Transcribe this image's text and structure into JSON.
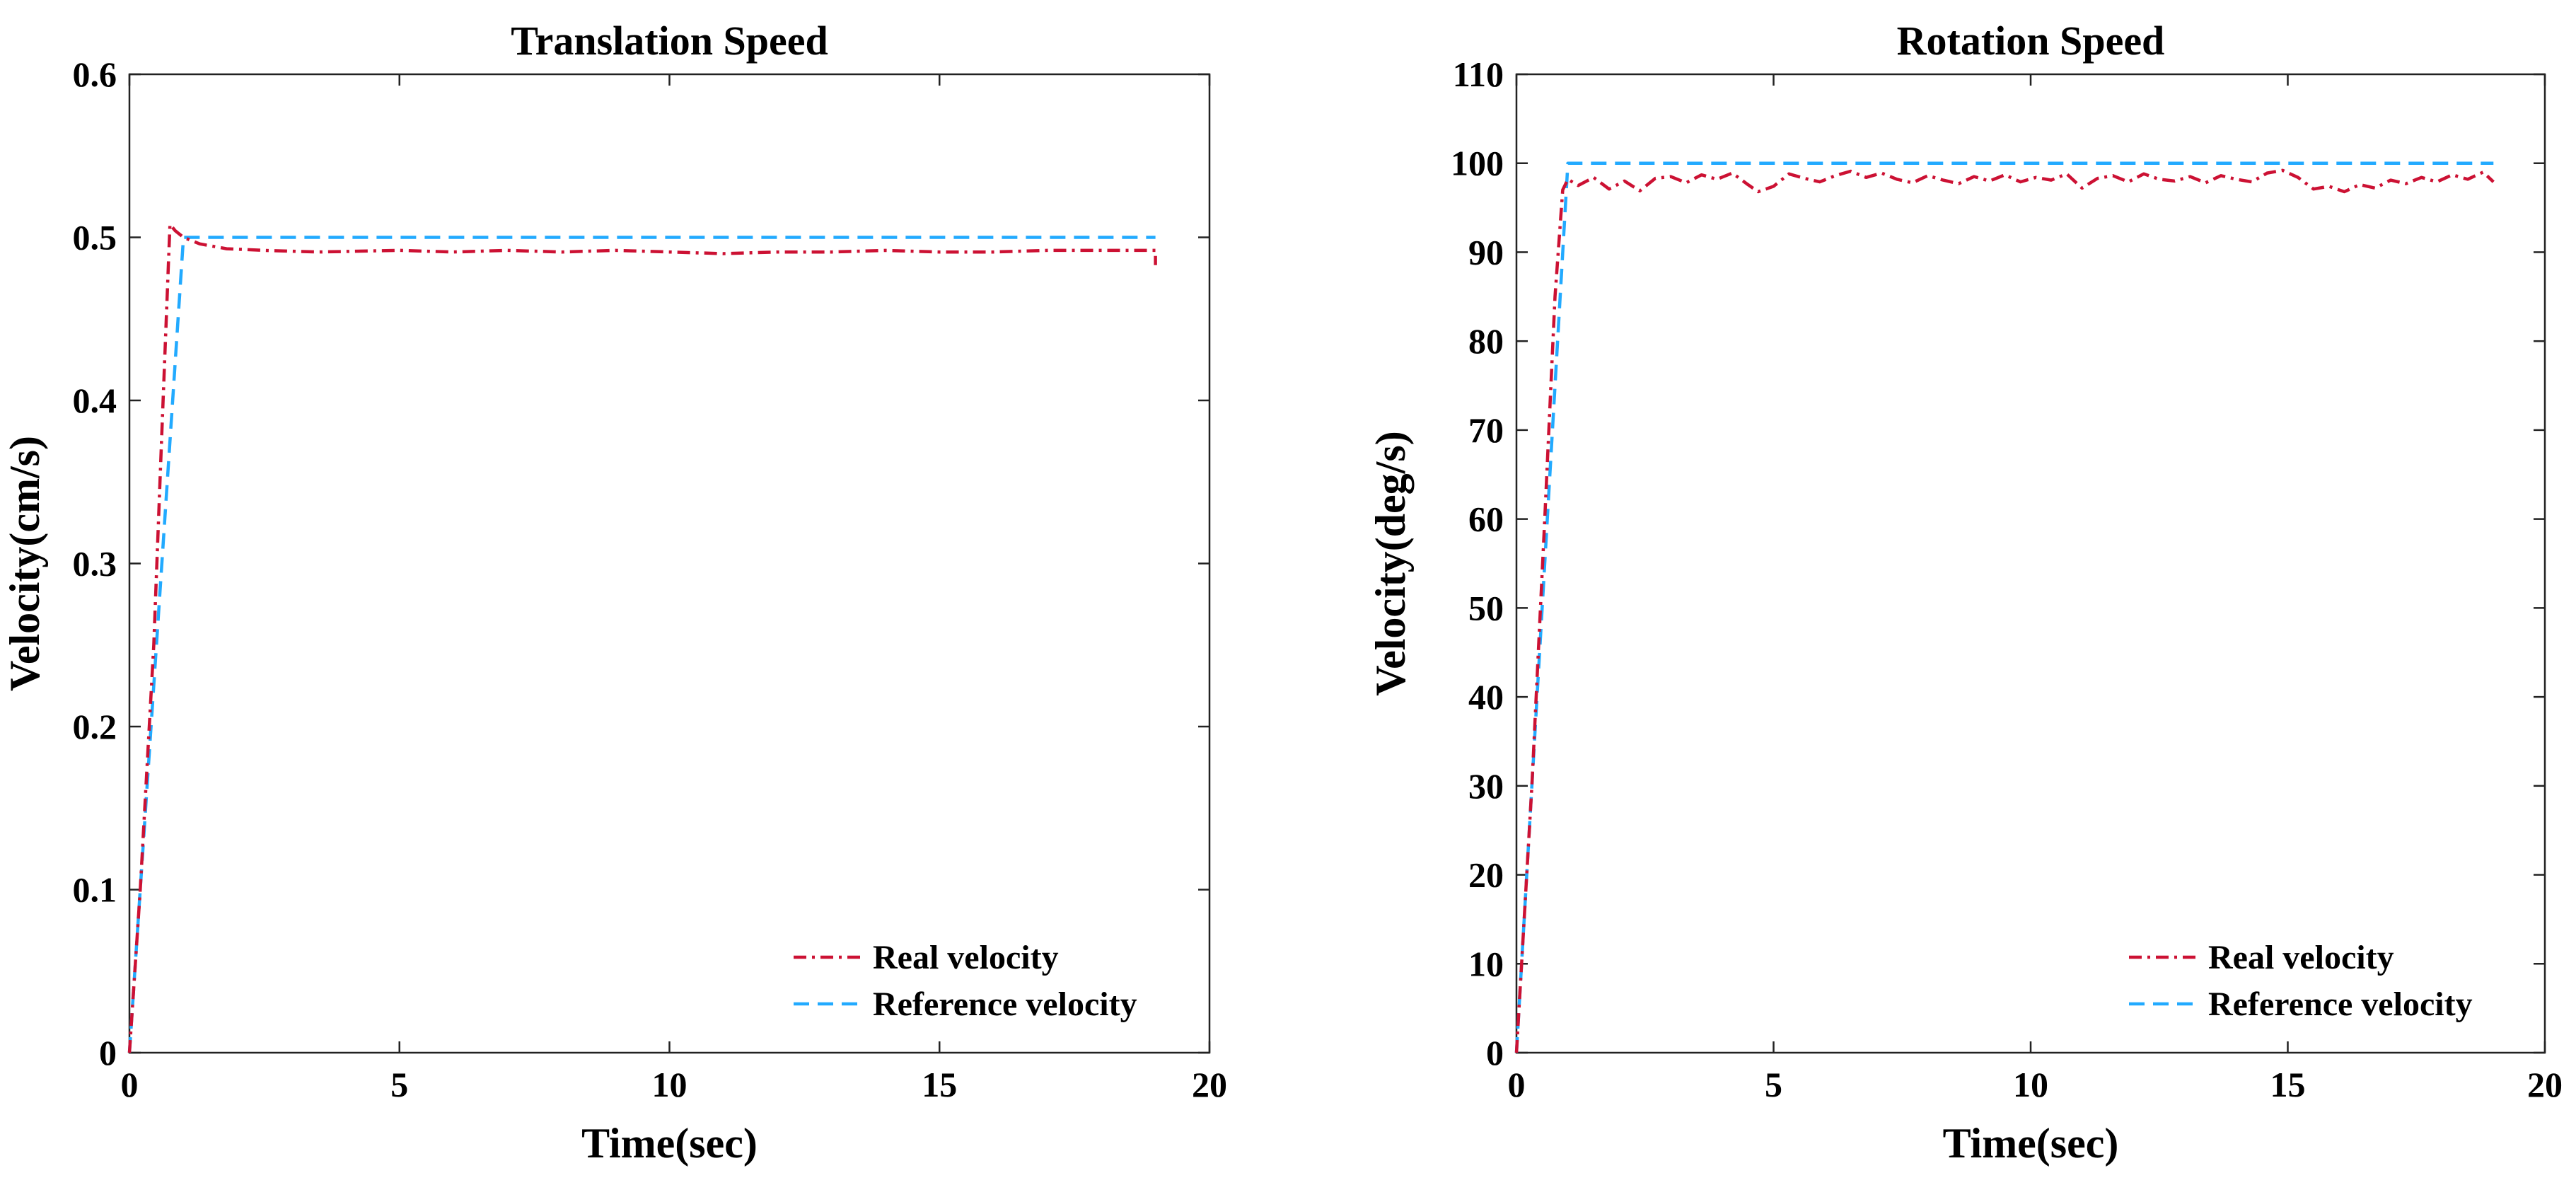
{
  "chart_data": [
    {
      "type": "line",
      "title": "Translation Speed",
      "xlabel": "Time(sec)",
      "ylabel": "Velocity(cm/s)",
      "xlim": [
        0,
        20
      ],
      "ylim": [
        0,
        0.6
      ],
      "xticks": [
        0,
        5,
        10,
        15,
        20
      ],
      "xtick_labels": [
        "0",
        "5",
        "10",
        "15",
        "20"
      ],
      "yticks": [
        0,
        0.1,
        0.2,
        0.3,
        0.4,
        0.5,
        0.6
      ],
      "ytick_labels": [
        "0",
        "0.1",
        "0.2",
        "0.3",
        "0.4",
        "0.5",
        "0.6"
      ],
      "grid": false,
      "legend_position": "bottom-right",
      "series": [
        {
          "name": "Real velocity",
          "color": "#cc1133",
          "style": "dashdot",
          "x": [
            0,
            0.2,
            0.45,
            0.6,
            0.75,
            0.85,
            1.0,
            1.3,
            1.8,
            2.5,
            3.5,
            5,
            6,
            7,
            8,
            9,
            10,
            11,
            12,
            13,
            14,
            15,
            16,
            17,
            18,
            19,
            19.0
          ],
          "y": [
            0,
            0.1,
            0.25,
            0.38,
            0.508,
            0.504,
            0.5,
            0.496,
            0.493,
            0.492,
            0.491,
            0.492,
            0.491,
            0.492,
            0.491,
            0.492,
            0.491,
            0.49,
            0.491,
            0.491,
            0.492,
            0.491,
            0.491,
            0.492,
            0.492,
            0.492,
            0.483
          ]
        },
        {
          "name": "Reference velocity",
          "color": "#22aaff",
          "style": "dashed",
          "x": [
            0,
            1.0,
            1.05,
            19
          ],
          "y": [
            0,
            0.5,
            0.5,
            0.5
          ]
        }
      ]
    },
    {
      "type": "line",
      "title": "Rotation Speed",
      "xlabel": "Time(sec)",
      "ylabel": "Velocity(deg/s)",
      "xlim": [
        0,
        20
      ],
      "ylim": [
        0,
        110
      ],
      "xticks": [
        0,
        5,
        10,
        15,
        20
      ],
      "xtick_labels": [
        "0",
        "5",
        "10",
        "15",
        "20"
      ],
      "yticks": [
        0,
        10,
        20,
        30,
        40,
        50,
        60,
        70,
        80,
        90,
        100,
        110
      ],
      "ytick_labels": [
        "0",
        "10",
        "20",
        "30",
        "40",
        "50",
        "60",
        "70",
        "80",
        "90",
        "100",
        "110"
      ],
      "grid": false,
      "legend_position": "bottom-right",
      "series": [
        {
          "name": "Real velocity",
          "color": "#cc1133",
          "style": "dashdot",
          "x": [
            0,
            0.3,
            0.55,
            0.75,
            0.9,
            1.0,
            1.2,
            1.5,
            1.8,
            2.1,
            2.4,
            2.7,
            3.0,
            3.3,
            3.6,
            3.9,
            4.2,
            4.5,
            4.7,
            5.0,
            5.3,
            5.6,
            5.9,
            6.2,
            6.5,
            6.8,
            7.1,
            7.4,
            7.7,
            8.0,
            8.3,
            8.6,
            8.9,
            9.2,
            9.5,
            9.8,
            10.1,
            10.4,
            10.7,
            11.0,
            11.3,
            11.6,
            11.9,
            12.2,
            12.5,
            12.8,
            13.1,
            13.4,
            13.7,
            14.0,
            14.3,
            14.6,
            14.9,
            15.2,
            15.5,
            15.8,
            16.1,
            16.4,
            16.7,
            17.0,
            17.3,
            17.6,
            17.9,
            18.2,
            18.5,
            18.8,
            19.0
          ],
          "y": [
            0,
            30,
            60,
            85,
            97,
            98.2,
            97.5,
            98.4,
            97.1,
            98.0,
            96.9,
            98.3,
            98.5,
            97.8,
            98.7,
            98.2,
            98.9,
            97.6,
            96.8,
            97.4,
            98.8,
            98.3,
            97.9,
            98.6,
            99.1,
            98.4,
            98.9,
            98.2,
            97.8,
            98.6,
            98.1,
            97.7,
            98.5,
            98.0,
            98.7,
            97.9,
            98.4,
            98.1,
            98.8,
            97.2,
            98.3,
            98.6,
            97.9,
            98.8,
            98.2,
            98.0,
            98.5,
            97.8,
            98.6,
            98.2,
            97.9,
            98.9,
            99.2,
            98.4,
            97.1,
            97.4,
            96.8,
            97.6,
            97.2,
            98.1,
            97.7,
            98.4,
            97.9,
            98.7,
            98.2,
            99.0,
            97.9
          ]
        },
        {
          "name": "Reference velocity",
          "color": "#22aaff",
          "style": "dashed",
          "x": [
            0,
            1.0,
            1.05,
            19
          ],
          "y": [
            0,
            100,
            100,
            100
          ]
        }
      ]
    }
  ]
}
